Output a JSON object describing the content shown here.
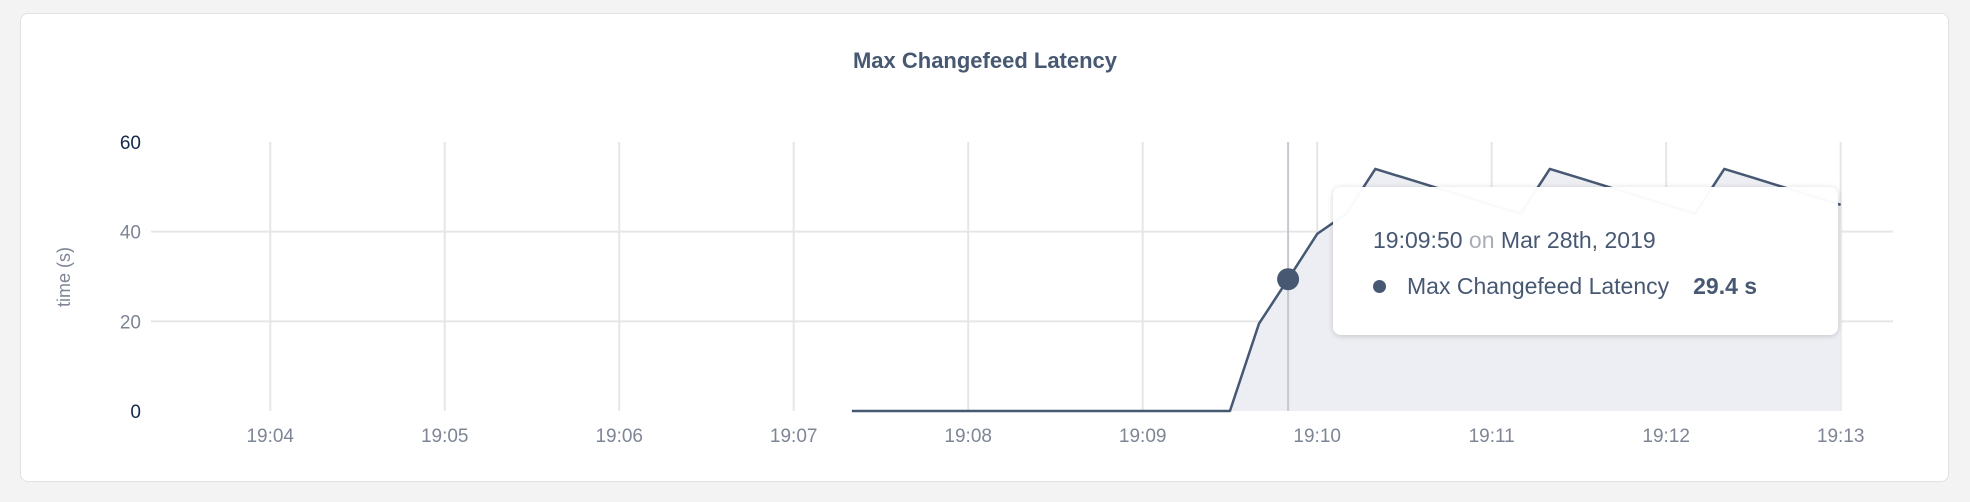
{
  "chart_data": {
    "type": "area",
    "title": "Max Changefeed Latency",
    "xlabel": "",
    "ylabel": "time (s)",
    "ylim": [
      0,
      60
    ],
    "xlim": [
      "19:03:19",
      "19:13:18"
    ],
    "yticks": [
      "0",
      "20",
      "40",
      "60"
    ],
    "xticks": [
      "19:04",
      "19:05",
      "19:06",
      "19:07",
      "19:08",
      "19:09",
      "19:10",
      "19:11",
      "19:12",
      "19:13"
    ],
    "grid": true,
    "series": [
      {
        "name": "Max Changefeed Latency",
        "color": "#475872",
        "fill": "#eceef3",
        "x": [
          "19:07:20",
          "19:09:30",
          "19:09:40",
          "19:09:50",
          "19:10:00",
          "19:10:10",
          "19:10:20",
          "19:10:30",
          "19:10:40",
          "19:10:50",
          "19:11:00",
          "19:11:10",
          "19:11:20",
          "19:11:30",
          "19:11:40",
          "19:11:50",
          "19:12:00",
          "19:12:10",
          "19:12:20",
          "19:12:30",
          "19:12:40",
          "19:12:50",
          "19:13:00"
        ],
        "y": [
          0,
          0,
          19.5,
          29.4,
          39.5,
          44,
          54,
          52,
          50,
          48,
          46,
          44,
          54,
          52,
          50,
          48,
          46,
          44,
          54,
          52,
          50,
          48,
          46
        ]
      }
    ],
    "hover": {
      "x": "19:09:50",
      "y": 29.4
    }
  },
  "tooltip": {
    "time": "19:09:50",
    "on": "on",
    "date": "Mar 28th, 2019",
    "series_name": "Max Changefeed Latency",
    "value": "29.4 s"
  }
}
